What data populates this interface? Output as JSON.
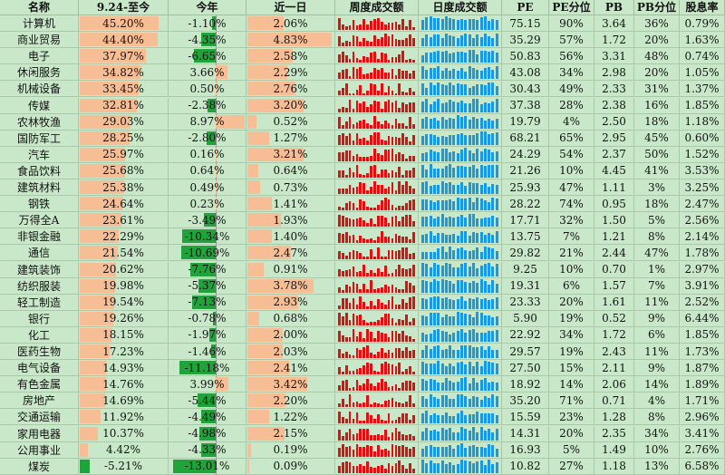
{
  "headers": [
    "名称",
    "9.24-至今",
    "今年",
    "近一日",
    "周度成交额",
    "日度成交额",
    "PE",
    "PE分位",
    "PB",
    "PB分位",
    "股息率"
  ],
  "colors": {
    "positive_bar": "#f7bd95",
    "negative_bar": "#1fa33a",
    "weekly_bar": "#dd1111",
    "daily_bar": "#1a98e0",
    "background": "#c9e8c9"
  },
  "rows": [
    {
      "name": "计算机",
      "since_924": "45.20%",
      "ytd": "-1.10%",
      "d1": "2.06%",
      "pe": "75.15",
      "pe_pct": "90%",
      "pb": "3.64",
      "pb_pct": "36%",
      "dy": "0.79%",
      "v924": 45.2,
      "vytd": -1.1,
      "vd1": 2.06
    },
    {
      "name": "商业贸易",
      "since_924": "44.40%",
      "ytd": "-4.35%",
      "d1": "4.83%",
      "pe": "35.29",
      "pe_pct": "57%",
      "pb": "1.72",
      "pb_pct": "20%",
      "dy": "1.63%",
      "v924": 44.4,
      "vytd": -4.35,
      "vd1": 4.83
    },
    {
      "name": "电子",
      "since_924": "37.97%",
      "ytd": "-6.65%",
      "d1": "2.58%",
      "pe": "50.83",
      "pe_pct": "56%",
      "pb": "3.31",
      "pb_pct": "48%",
      "dy": "0.74%",
      "v924": 37.97,
      "vytd": -6.65,
      "vd1": 2.58
    },
    {
      "name": "休闲服务",
      "since_924": "34.82%",
      "ytd": "3.66%",
      "d1": "2.29%",
      "pe": "43.08",
      "pe_pct": "34%",
      "pb": "2.98",
      "pb_pct": "20%",
      "dy": "1.05%",
      "v924": 34.82,
      "vytd": 3.66,
      "vd1": 2.29
    },
    {
      "name": "机械设备",
      "since_924": "33.45%",
      "ytd": "0.50%",
      "d1": "2.76%",
      "pe": "30.43",
      "pe_pct": "49%",
      "pb": "2.33",
      "pb_pct": "31%",
      "dy": "1.37%",
      "v924": 33.45,
      "vytd": 0.5,
      "vd1": 2.76
    },
    {
      "name": "传媒",
      "since_924": "32.81%",
      "ytd": "-2.38%",
      "d1": "3.20%",
      "pe": "37.38",
      "pe_pct": "28%",
      "pb": "2.38",
      "pb_pct": "16%",
      "dy": "1.85%",
      "v924": 32.81,
      "vytd": -2.38,
      "vd1": 3.2
    },
    {
      "name": "农林牧渔",
      "since_924": "29.03%",
      "ytd": "8.97%",
      "d1": "0.52%",
      "pe": "19.79",
      "pe_pct": "4%",
      "pb": "2.50",
      "pb_pct": "18%",
      "dy": "1.18%",
      "v924": 29.03,
      "vytd": 8.97,
      "vd1": 0.52
    },
    {
      "name": "国防军工",
      "since_924": "28.25%",
      "ytd": "-2.80%",
      "d1": "1.27%",
      "pe": "68.21",
      "pe_pct": "65%",
      "pb": "2.95",
      "pb_pct": "45%",
      "dy": "0.60%",
      "v924": 28.25,
      "vytd": -2.8,
      "vd1": 1.27
    },
    {
      "name": "汽车",
      "since_924": "25.97%",
      "ytd": "0.16%",
      "d1": "3.21%",
      "pe": "24.29",
      "pe_pct": "54%",
      "pb": "2.37",
      "pb_pct": "50%",
      "dy": "1.52%",
      "v924": 25.97,
      "vytd": 0.16,
      "vd1": 3.21
    },
    {
      "name": "食品饮料",
      "since_924": "25.68%",
      "ytd": "0.64%",
      "d1": "0.64%",
      "pe": "21.26",
      "pe_pct": "10%",
      "pb": "4.45",
      "pb_pct": "41%",
      "dy": "3.53%",
      "v924": 25.68,
      "vytd": 0.64,
      "vd1": 0.64
    },
    {
      "name": "建筑材料",
      "since_924": "25.38%",
      "ytd": "0.49%",
      "d1": "0.73%",
      "pe": "25.93",
      "pe_pct": "47%",
      "pb": "1.11",
      "pb_pct": "3%",
      "dy": "3.25%",
      "v924": 25.38,
      "vytd": 0.49,
      "vd1": 0.73
    },
    {
      "name": "钢铁",
      "since_924": "24.64%",
      "ytd": "0.23%",
      "d1": "1.41%",
      "pe": "28.22",
      "pe_pct": "74%",
      "pb": "0.95",
      "pb_pct": "18%",
      "dy": "2.47%",
      "v924": 24.64,
      "vytd": 0.23,
      "vd1": 1.41
    },
    {
      "name": "万得全A",
      "since_924": "23.61%",
      "ytd": "-3.49%",
      "d1": "1.93%",
      "pe": "17.71",
      "pe_pct": "32%",
      "pb": "1.50",
      "pb_pct": "5%",
      "dy": "2.56%",
      "v924": 23.61,
      "vytd": -3.49,
      "vd1": 1.93
    },
    {
      "name": "非银金融",
      "since_924": "22.29%",
      "ytd": "-10.34%",
      "d1": "1.40%",
      "pe": "13.75",
      "pe_pct": "7%",
      "pb": "1.21",
      "pb_pct": "8%",
      "dy": "2.14%",
      "v924": 22.29,
      "vytd": -10.34,
      "vd1": 1.4
    },
    {
      "name": "通信",
      "since_924": "21.54%",
      "ytd": "-10.69%",
      "d1": "2.47%",
      "pe": "29.82",
      "pe_pct": "21%",
      "pb": "2.44",
      "pb_pct": "47%",
      "dy": "1.78%",
      "v924": 21.54,
      "vytd": -10.69,
      "vd1": 2.47
    },
    {
      "name": "建筑装饰",
      "since_924": "20.62%",
      "ytd": "-7.76%",
      "d1": "0.91%",
      "pe": "9.25",
      "pe_pct": "10%",
      "pb": "0.70",
      "pb_pct": "1%",
      "dy": "2.97%",
      "v924": 20.62,
      "vytd": -7.76,
      "vd1": 0.91
    },
    {
      "name": "纺织服装",
      "since_924": "19.98%",
      "ytd": "-5.37%",
      "d1": "3.78%",
      "pe": "19.31",
      "pe_pct": "6%",
      "pb": "1.57",
      "pb_pct": "7%",
      "dy": "3.91%",
      "v924": 19.98,
      "vytd": -5.37,
      "vd1": 3.78
    },
    {
      "name": "轻工制造",
      "since_924": "19.54%",
      "ytd": "-7.13%",
      "d1": "2.93%",
      "pe": "23.33",
      "pe_pct": "20%",
      "pb": "1.61",
      "pb_pct": "11%",
      "dy": "2.52%",
      "v924": 19.54,
      "vytd": -7.13,
      "vd1": 2.93
    },
    {
      "name": "银行",
      "since_924": "19.26%",
      "ytd": "-0.78%",
      "d1": "0.68%",
      "pe": "5.90",
      "pe_pct": "19%",
      "pb": "0.52",
      "pb_pct": "9%",
      "dy": "6.44%",
      "v924": 19.26,
      "vytd": -0.78,
      "vd1": 0.68
    },
    {
      "name": "化工",
      "since_924": "18.15%",
      "ytd": "-1.97%",
      "d1": "2.00%",
      "pe": "22.92",
      "pe_pct": "34%",
      "pb": "1.72",
      "pb_pct": "6%",
      "dy": "1.85%",
      "v924": 18.15,
      "vytd": -1.97,
      "vd1": 2.0
    },
    {
      "name": "医药生物",
      "since_924": "17.23%",
      "ytd": "-1.46%",
      "d1": "2.03%",
      "pe": "29.57",
      "pe_pct": "19%",
      "pb": "2.43",
      "pb_pct": "11%",
      "dy": "1.73%",
      "v924": 17.23,
      "vytd": -1.46,
      "vd1": 2.03
    },
    {
      "name": "电气设备",
      "since_924": "14.93%",
      "ytd": "-11.18%",
      "d1": "2.41%",
      "pe": "27.50",
      "pe_pct": "15%",
      "pb": "2.11",
      "pb_pct": "9%",
      "dy": "1.87%",
      "v924": 14.93,
      "vytd": -11.18,
      "vd1": 2.41
    },
    {
      "name": "有色金属",
      "since_924": "14.76%",
      "ytd": "3.99%",
      "d1": "3.42%",
      "pe": "18.92",
      "pe_pct": "14%",
      "pb": "2.06",
      "pb_pct": "14%",
      "dy": "1.89%",
      "v924": 14.76,
      "vytd": 3.99,
      "vd1": 3.42
    },
    {
      "name": "房地产",
      "since_924": "14.69%",
      "ytd": "-5.44%",
      "d1": "2.20%",
      "pe": "35.20",
      "pe_pct": "71%",
      "pb": "0.71",
      "pb_pct": "4%",
      "dy": "1.71%",
      "v924": 14.69,
      "vytd": -5.44,
      "vd1": 2.2
    },
    {
      "name": "交通运输",
      "since_924": "11.92%",
      "ytd": "-4.49%",
      "d1": "1.22%",
      "pe": "15.59",
      "pe_pct": "23%",
      "pb": "1.28",
      "pb_pct": "8%",
      "dy": "2.96%",
      "v924": 11.92,
      "vytd": -4.49,
      "vd1": 1.22
    },
    {
      "name": "家用电器",
      "since_924": "10.37%",
      "ytd": "-4.98%",
      "d1": "2.15%",
      "pe": "14.31",
      "pe_pct": "20%",
      "pb": "2.35",
      "pb_pct": "34%",
      "dy": "3.41%",
      "v924": 10.37,
      "vytd": -4.98,
      "vd1": 2.15
    },
    {
      "name": "公用事业",
      "since_924": "4.42%",
      "ytd": "-4.33%",
      "d1": "0.19%",
      "pe": "16.93",
      "pe_pct": "5%",
      "pb": "1.49",
      "pb_pct": "10%",
      "dy": "2.76%",
      "v924": 4.42,
      "vytd": -4.33,
      "vd1": 0.19
    },
    {
      "name": "煤炭",
      "since_924": "-5.21%",
      "ytd": "-13.01%",
      "d1": "0.09%",
      "pe": "10.82",
      "pe_pct": "27%",
      "pb": "1.18",
      "pb_pct": "13%",
      "dy": "6.58%",
      "v924": -5.21,
      "vytd": -13.01,
      "vd1": 0.09
    }
  ]
}
